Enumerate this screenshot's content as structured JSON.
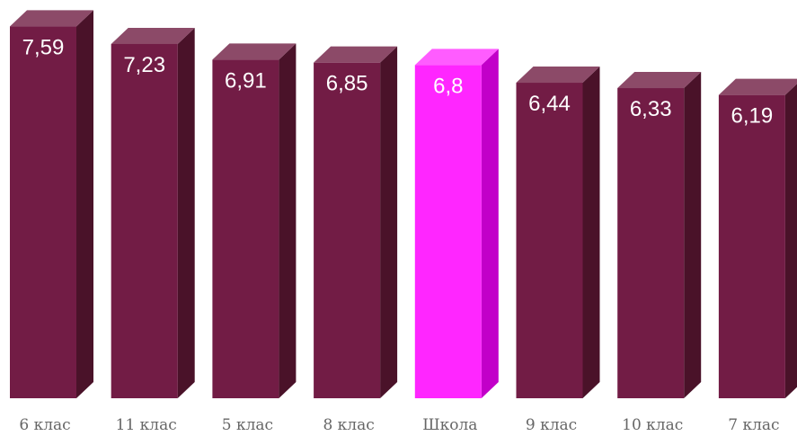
{
  "chart_data": {
    "type": "bar",
    "style": "3d",
    "categories": [
      "6 клас",
      "11 клас",
      "5 клас",
      "8 клас",
      "Школа",
      "9 клас",
      "10 клас",
      "7 клас"
    ],
    "values": [
      7.59,
      7.23,
      6.91,
      6.85,
      6.8,
      6.44,
      6.33,
      6.19
    ],
    "value_labels": [
      "7,59",
      "7,23",
      "6,91",
      "6,85",
      "6,8",
      "6,44",
      "6,33",
      "6,19"
    ],
    "highlight_category": "Школа",
    "title": "",
    "xlabel": "",
    "ylabel": "",
    "ylim": [
      0,
      8
    ],
    "grid": false,
    "colors": {
      "bar_front": "#721c45",
      "bar_top": "#8c4a68",
      "bar_side": "#4a1229",
      "highlight_front": "#ff26ff",
      "highlight_top": "#ff5cff",
      "highlight_side": "#c200c9",
      "value_text": "#ffffff",
      "category_text": "#666666"
    }
  }
}
